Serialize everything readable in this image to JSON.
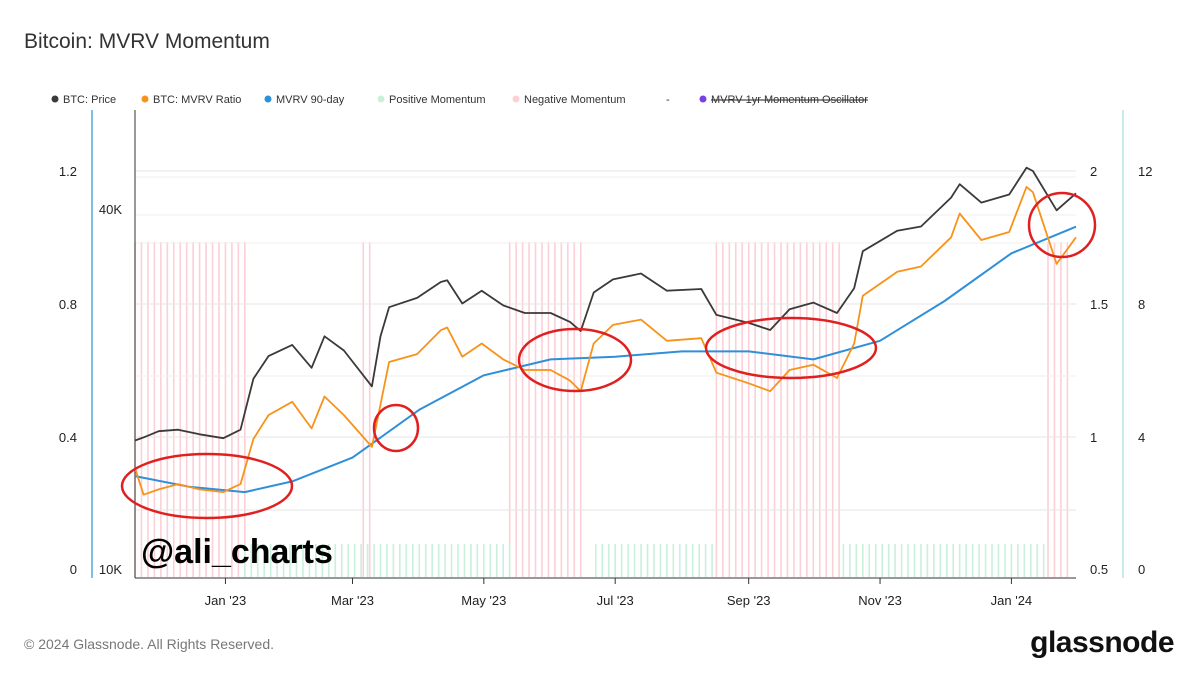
{
  "title": "Bitcoin: MVRV Momentum",
  "footer": "© 2024 Glassnode. All Rights Reserved.",
  "brand": "glassnode",
  "watermark": "@ali_charts",
  "colors": {
    "price": "#3a3a3a",
    "mvrv": "#f7931a",
    "mvrv90": "#2f8fd8",
    "positive": "#c9f0dc",
    "negative": "#fbd0d6",
    "oscillator": "#7b3fe4",
    "circle": "#e02020"
  },
  "legend": [
    {
      "label": "BTC: Price",
      "color": "#3a3a3a",
      "icon": "dot-icon",
      "struck": false
    },
    {
      "label": "BTC: MVRV Ratio",
      "color": "#f7931a",
      "icon": "dot-icon",
      "struck": false
    },
    {
      "label": "MVRV 90-day",
      "color": "#2f8fd8",
      "icon": "dot-icon",
      "struck": false
    },
    {
      "label": "Positive Momentum",
      "color": "#c9f0dc",
      "icon": "dot-icon",
      "struck": false
    },
    {
      "label": "Negative Momentum",
      "color": "#fbd0d6",
      "icon": "dot-icon",
      "struck": false
    },
    {
      "label": "-",
      "color": "#999999",
      "icon": "",
      "struck": false
    },
    {
      "label": "MVRV 1yr Momentum Oscillator",
      "color": "#7b3fe4",
      "icon": "dot-icon",
      "struck": true
    }
  ],
  "chart_data": {
    "type": "line",
    "title": "Bitcoin: MVRV Momentum",
    "x_labels": [
      "Jan '23",
      "Mar '23",
      "May '23",
      "Jul '23",
      "Sep '23",
      "Nov '23",
      "Jan '24"
    ],
    "x_label_dates": [
      "2023-01-01",
      "2023-03-01",
      "2023-05-01",
      "2023-07-01",
      "2023-09-01",
      "2023-11-01",
      "2024-01-01"
    ],
    "x_range": [
      "2022-11-20",
      "2024-01-31"
    ],
    "axes": {
      "momentum_left": {
        "ticks": [
          "0",
          "0.4",
          "0.8",
          "1.2"
        ],
        "range": [
          0,
          1.2
        ]
      },
      "price_left": {
        "ticks": [
          "10K",
          "40K"
        ],
        "scale": "log"
      },
      "mvrv_right": {
        "ticks": [
          "0.5",
          "1",
          "1.5",
          "2"
        ],
        "range": [
          0.5,
          2
        ]
      },
      "oscillator_right": {
        "ticks": [
          "0",
          "4",
          "8",
          "12"
        ],
        "range": [
          0,
          12
        ]
      }
    },
    "series": [
      {
        "name": "BTC: Price",
        "axis": "price_left",
        "points": [
          [
            "2022-11-20",
            16400
          ],
          [
            "2022-11-24",
            16600
          ],
          [
            "2022-12-01",
            17000
          ],
          [
            "2022-12-10",
            17100
          ],
          [
            "2022-12-20",
            16800
          ],
          [
            "2022-12-31",
            16550
          ],
          [
            "2023-01-08",
            17100
          ],
          [
            "2023-01-14",
            20800
          ],
          [
            "2023-01-21",
            22700
          ],
          [
            "2023-02-01",
            23700
          ],
          [
            "2023-02-10",
            21700
          ],
          [
            "2023-02-16",
            24500
          ],
          [
            "2023-02-25",
            23200
          ],
          [
            "2023-03-10",
            20200
          ],
          [
            "2023-03-14",
            24500
          ],
          [
            "2023-03-18",
            27400
          ],
          [
            "2023-03-31",
            28400
          ],
          [
            "2023-04-11",
            30200
          ],
          [
            "2023-04-14",
            30400
          ],
          [
            "2023-04-21",
            27800
          ],
          [
            "2023-04-30",
            29200
          ],
          [
            "2023-05-10",
            27600
          ],
          [
            "2023-05-20",
            26800
          ],
          [
            "2023-06-01",
            26800
          ],
          [
            "2023-06-10",
            25900
          ],
          [
            "2023-06-15",
            25000
          ],
          [
            "2023-06-21",
            29000
          ],
          [
            "2023-06-30",
            30500
          ],
          [
            "2023-07-13",
            31200
          ],
          [
            "2023-07-25",
            29200
          ],
          [
            "2023-08-10",
            29400
          ],
          [
            "2023-08-17",
            26600
          ],
          [
            "2023-09-01",
            25800
          ],
          [
            "2023-09-11",
            25100
          ],
          [
            "2023-09-20",
            27200
          ],
          [
            "2023-10-01",
            27900
          ],
          [
            "2023-10-12",
            26800
          ],
          [
            "2023-10-20",
            29500
          ],
          [
            "2023-10-24",
            34000
          ],
          [
            "2023-11-09",
            36800
          ],
          [
            "2023-11-20",
            37400
          ],
          [
            "2023-12-04",
            41800
          ],
          [
            "2023-12-08",
            44000
          ],
          [
            "2023-12-18",
            41000
          ],
          [
            "2023-12-31",
            42300
          ],
          [
            "2024-01-08",
            46900
          ],
          [
            "2024-01-11",
            46300
          ],
          [
            "2024-01-22",
            39800
          ],
          [
            "2024-01-31",
            42500
          ]
        ]
      },
      {
        "name": "BTC: MVRV Ratio",
        "axis": "mvrv_right",
        "points": [
          [
            "2022-11-20",
            0.88
          ],
          [
            "2022-11-24",
            0.78
          ],
          [
            "2022-12-01",
            0.8
          ],
          [
            "2022-12-10",
            0.82
          ],
          [
            "2022-12-20",
            0.8
          ],
          [
            "2022-12-31",
            0.79
          ],
          [
            "2023-01-08",
            0.82
          ],
          [
            "2023-01-14",
            0.99
          ],
          [
            "2023-01-21",
            1.08
          ],
          [
            "2023-02-01",
            1.13
          ],
          [
            "2023-02-10",
            1.03
          ],
          [
            "2023-02-16",
            1.15
          ],
          [
            "2023-02-25",
            1.08
          ],
          [
            "2023-03-10",
            0.96
          ],
          [
            "2023-03-14",
            1.12
          ],
          [
            "2023-03-18",
            1.28
          ],
          [
            "2023-03-31",
            1.31
          ],
          [
            "2023-04-11",
            1.4
          ],
          [
            "2023-04-14",
            1.41
          ],
          [
            "2023-04-21",
            1.3
          ],
          [
            "2023-04-30",
            1.35
          ],
          [
            "2023-05-10",
            1.29
          ],
          [
            "2023-05-20",
            1.25
          ],
          [
            "2023-06-01",
            1.25
          ],
          [
            "2023-06-10",
            1.21
          ],
          [
            "2023-06-15",
            1.17
          ],
          [
            "2023-06-21",
            1.35
          ],
          [
            "2023-06-30",
            1.42
          ],
          [
            "2023-07-13",
            1.44
          ],
          [
            "2023-07-25",
            1.36
          ],
          [
            "2023-08-10",
            1.37
          ],
          [
            "2023-08-17",
            1.24
          ],
          [
            "2023-09-01",
            1.2
          ],
          [
            "2023-09-11",
            1.17
          ],
          [
            "2023-09-20",
            1.25
          ],
          [
            "2023-10-01",
            1.27
          ],
          [
            "2023-10-12",
            1.22
          ],
          [
            "2023-10-20",
            1.35
          ],
          [
            "2023-10-24",
            1.53
          ],
          [
            "2023-11-09",
            1.62
          ],
          [
            "2023-11-20",
            1.64
          ],
          [
            "2023-12-04",
            1.75
          ],
          [
            "2023-12-08",
            1.84
          ],
          [
            "2023-12-18",
            1.74
          ],
          [
            "2023-12-31",
            1.77
          ],
          [
            "2024-01-08",
            1.94
          ],
          [
            "2024-01-11",
            1.92
          ],
          [
            "2024-01-22",
            1.65
          ],
          [
            "2024-01-31",
            1.75
          ]
        ]
      },
      {
        "name": "MVRV 90-day",
        "axis": "mvrv_right",
        "points": [
          [
            "2022-11-20",
            0.85
          ],
          [
            "2022-12-15",
            0.81
          ],
          [
            "2023-01-10",
            0.79
          ],
          [
            "2023-02-01",
            0.83
          ],
          [
            "2023-03-01",
            0.92
          ],
          [
            "2023-04-01",
            1.1
          ],
          [
            "2023-05-01",
            1.23
          ],
          [
            "2023-06-01",
            1.29
          ],
          [
            "2023-07-01",
            1.3
          ],
          [
            "2023-08-01",
            1.32
          ],
          [
            "2023-09-01",
            1.32
          ],
          [
            "2023-10-01",
            1.29
          ],
          [
            "2023-11-01",
            1.36
          ],
          [
            "2023-12-01",
            1.51
          ],
          [
            "2024-01-01",
            1.69
          ],
          [
            "2024-01-31",
            1.79
          ]
        ]
      }
    ],
    "momentum_regions": {
      "negative": [
        [
          "2022-11-20",
          "2023-01-10"
        ],
        [
          "2023-03-06",
          "2023-03-09"
        ],
        [
          "2023-05-13",
          "2023-06-17"
        ],
        [
          "2023-08-17",
          "2023-10-15"
        ],
        [
          "2024-01-18",
          "2024-01-27"
        ]
      ],
      "positive": [
        [
          "2023-01-10",
          "2023-05-13"
        ],
        [
          "2023-06-22",
          "2023-08-17"
        ],
        [
          "2023-10-15",
          "2024-01-18"
        ]
      ]
    },
    "grid": true,
    "legend_position": "top-left"
  }
}
